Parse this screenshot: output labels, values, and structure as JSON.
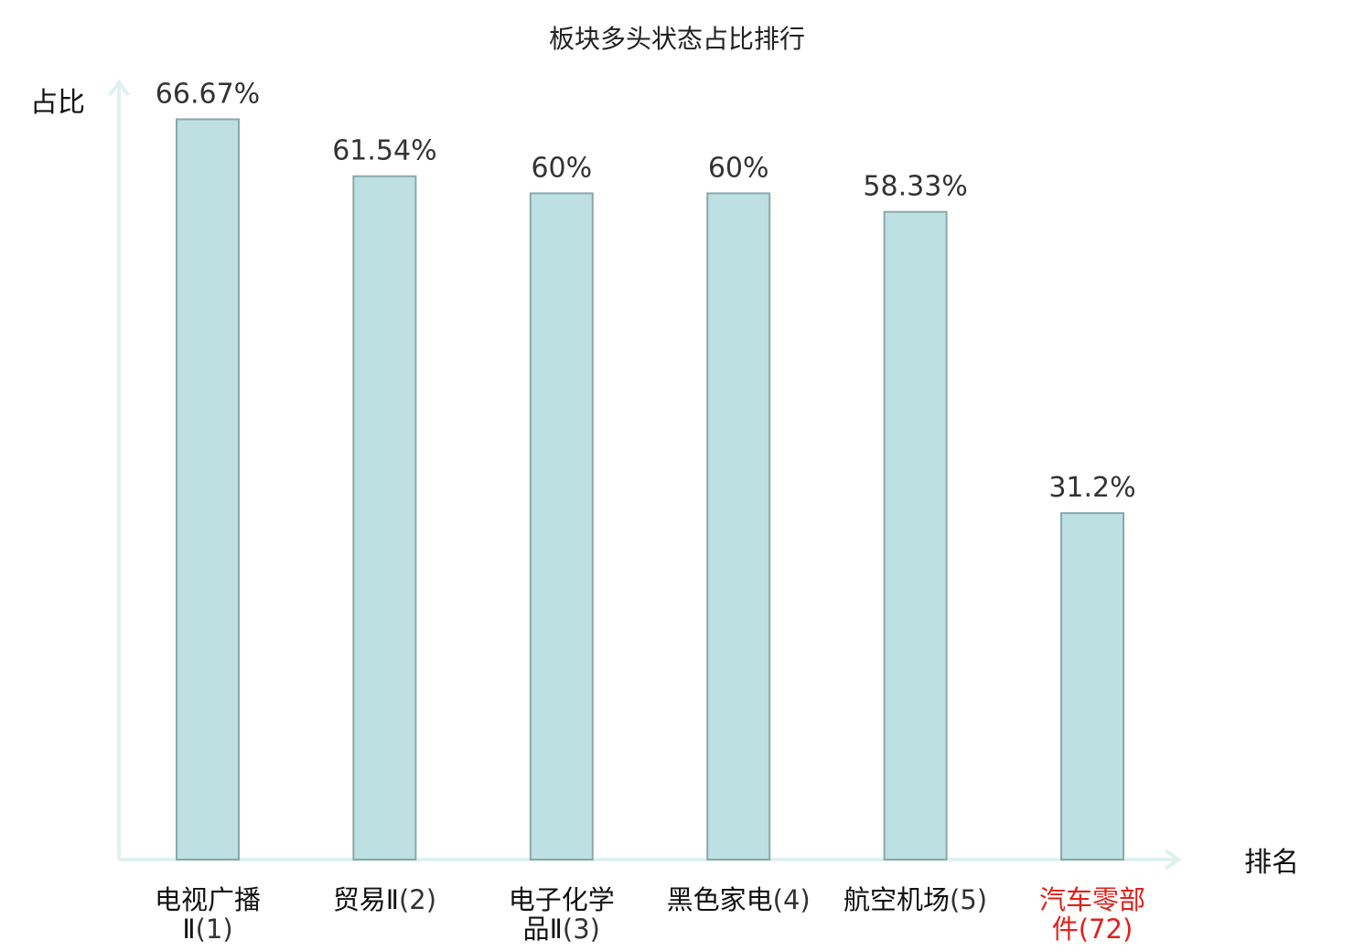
{
  "chart_data": {
    "type": "bar",
    "title": "板块多头状态占比排行",
    "ylabel": "占比",
    "xlabel": "排名",
    "ylim": [
      0,
      70
    ],
    "grid": false,
    "legend": "none",
    "categories": [
      {
        "name_lines": [
          "电视广播",
          "Ⅱ"
        ],
        "rank": "(1)",
        "highlight": false
      },
      {
        "name_lines": [
          "贸易Ⅱ"
        ],
        "rank": "(2)",
        "highlight": false
      },
      {
        "name_lines": [
          "电子化学",
          "品Ⅱ"
        ],
        "rank": "(3)",
        "highlight": false
      },
      {
        "name_lines": [
          "黑色家电"
        ],
        "rank": "(4)",
        "highlight": false
      },
      {
        "name_lines": [
          "航空机场"
        ],
        "rank": "(5)",
        "highlight": false
      },
      {
        "name_lines": [
          "汽车零部",
          "件"
        ],
        "rank": "(72)",
        "highlight": true
      }
    ],
    "values": [
      66.67,
      61.54,
      60,
      60,
      58.33,
      31.2
    ],
    "value_labels": [
      "66.67%",
      "61.54%",
      "60%",
      "60%",
      "58.33%",
      "31.2%"
    ]
  },
  "colors": {
    "bar_fill": "#bde0e3",
    "bar_stroke": "#8aa8ab",
    "axis": "#dff1ee",
    "highlight_text": "#e0201b",
    "normal_text": "#111111",
    "rank_text": "#333333"
  }
}
